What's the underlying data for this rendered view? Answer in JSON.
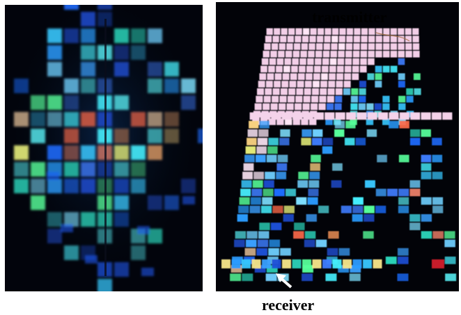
{
  "figure": {
    "left_photo_name": "reflected-led-pattern-photo",
    "right_photo_name": "led-floor-tile-array-photo",
    "labels": {
      "transmitter": "transmitter",
      "receiver": "receiver"
    }
  }
}
